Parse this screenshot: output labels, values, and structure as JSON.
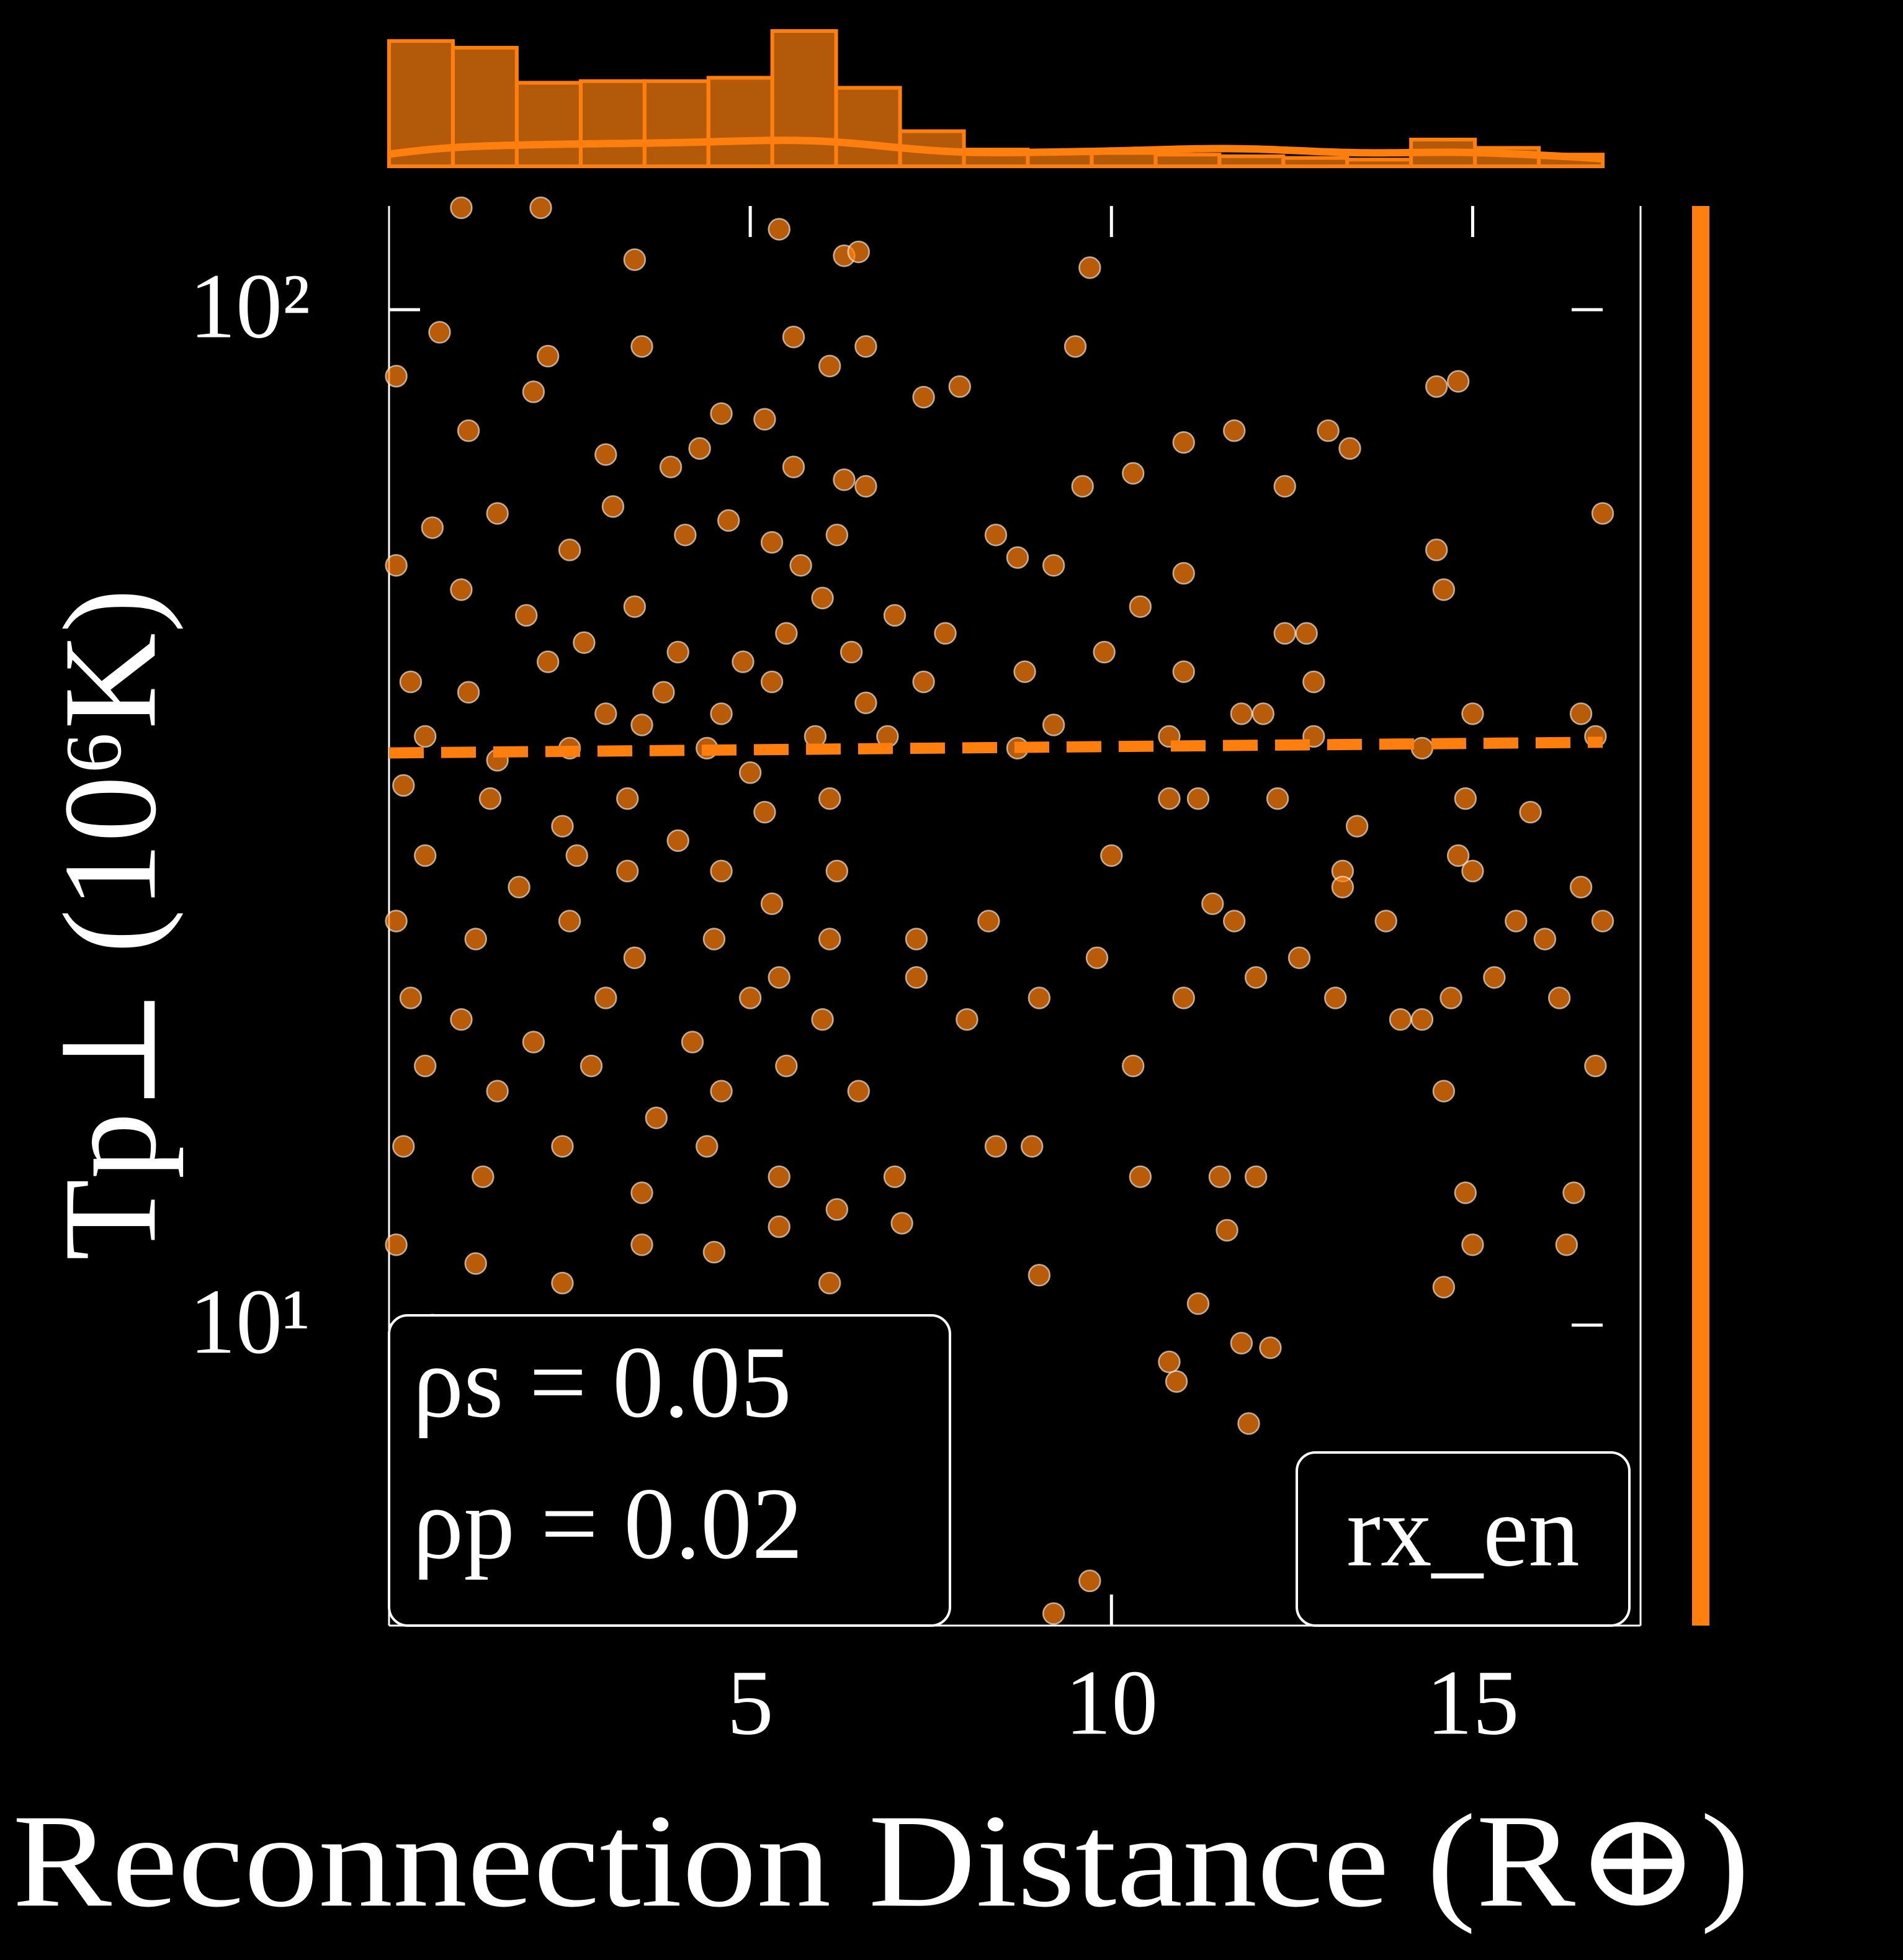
{
  "chart_data": {
    "type": "scatter",
    "x_label": "Reconnection Distance (R⊕)",
    "y_label": "Tp⊥ (10⁶K)",
    "xlim": [
      0,
      16.8
    ],
    "xticks": [
      5,
      10,
      15
    ],
    "ylim": [
      5.06,
      126.5
    ],
    "yticks": [
      {
        "value": 10,
        "label": "10¹"
      },
      {
        "value": 100,
        "label": "10²"
      }
    ],
    "log_y": true,
    "annotations": [
      "ρs = 0.05",
      "ρp = 0.02"
    ],
    "series": [
      {
        "name": "rx_en",
        "color": "#ff7f0e",
        "x": [
          1.0,
          2.1,
          3.4,
          5.4,
          6.3,
          6.5,
          9.7,
          0.7,
          0.1,
          2.2,
          3.5,
          5.6,
          6.1,
          6.6,
          7.4,
          7.9,
          9.5,
          14.8,
          14.5,
          1.1,
          2.0,
          4.6,
          5.2,
          3.0,
          3.9,
          4.3,
          5.6,
          6.3,
          6.6,
          9.6,
          10.3,
          11.0,
          11.7,
          12.4,
          13.0,
          13.3,
          0.6,
          1.5,
          2.5,
          3.1,
          4.1,
          4.7,
          5.3,
          5.7,
          6.2,
          8.4,
          9.2,
          14.5,
          16.8,
          0.1,
          1.0,
          1.9,
          2.7,
          3.4,
          4.0,
          4.9,
          5.5,
          6.0,
          6.4,
          7.0,
          7.7,
          8.7,
          10.4,
          11.0,
          12.4,
          12.7,
          14.6,
          0.3,
          1.1,
          2.2,
          3.0,
          3.8,
          4.6,
          5.3,
          6.6,
          7.4,
          8.8,
          9.9,
          11.0,
          11.8,
          12.1,
          12.8,
          16.5,
          0.5,
          1.5,
          2.5,
          3.5,
          4.4,
          5.0,
          5.9,
          6.9,
          8.7,
          9.2,
          10.8,
          12.8,
          14.3,
          15.0,
          16.7,
          0.2,
          1.4,
          2.4,
          3.3,
          4.0,
          5.2,
          6.1,
          10.8,
          11.2,
          12.3,
          13.4,
          14.9,
          15.8,
          0.5,
          1.8,
          2.6,
          3.3,
          4.6,
          5.3,
          6.2,
          10.0,
          13.2,
          14.8,
          15.0,
          16.5,
          0.1,
          1.2,
          2.5,
          3.4,
          4.5,
          5.4,
          6.1,
          7.3,
          8.3,
          9.8,
          11.4,
          11.7,
          12.6,
          13.2,
          13.8,
          15.6,
          16.0,
          16.8,
          0.3,
          1.0,
          2.0,
          3.0,
          4.2,
          5.0,
          6.0,
          7.3,
          8.0,
          9.0,
          11.0,
          12.0,
          13.1,
          14.0,
          14.7,
          15.3,
          16.2,
          0.5,
          1.5,
          2.8,
          3.7,
          4.6,
          5.5,
          6.5,
          10.3,
          14.3,
          14.6,
          16.7,
          0.2,
          1.3,
          2.4,
          3.5,
          4.4,
          5.4,
          6.2,
          7.0,
          8.4,
          8.9,
          10.4,
          11.5,
          12.0,
          14.9,
          16.4,
          0.1,
          1.2,
          2.4,
          3.5,
          4.5,
          5.4,
          6.1,
          7.1,
          9.0,
          11.6,
          14.6,
          15.0,
          16.3,
          0.6,
          1.7,
          2.6,
          4.2,
          5.9,
          11.2,
          11.8,
          12.2,
          10.8,
          10.9,
          11.9,
          7.6,
          9.7,
          9.2
        ],
        "values": [
          126,
          126,
          112,
          120,
          113,
          114,
          110,
          95,
          86,
          90,
          92,
          94,
          88,
          92,
          82,
          84,
          92,
          85,
          84,
          76,
          83,
          79,
          78,
          72,
          70,
          73,
          70,
          68,
          67,
          67,
          69,
          74,
          76,
          67,
          76,
          73,
          61,
          63,
          58,
          64,
          60,
          62,
          59,
          56,
          60,
          60,
          56,
          58,
          63,
          56,
          53,
          50,
          47,
          51,
          46,
          45,
          48,
          52,
          46,
          50,
          48,
          57,
          51,
          55,
          48,
          48,
          53,
          43,
          42,
          45,
          40,
          42,
          40,
          43,
          41,
          43,
          44,
          46,
          44,
          40,
          40,
          43,
          40,
          38,
          36,
          37,
          39,
          37,
          35,
          38,
          38,
          37,
          39,
          38,
          38,
          37,
          40,
          38,
          34,
          33,
          31,
          33,
          30,
          32,
          33,
          33,
          33,
          33,
          31,
          33,
          32,
          29,
          27,
          29,
          28,
          28,
          26,
          28,
          29,
          28,
          29,
          28,
          27,
          25,
          24,
          25,
          23,
          24,
          22,
          24,
          24,
          25,
          23,
          26,
          25,
          23,
          27,
          25,
          25,
          24,
          25,
          21,
          20,
          19,
          21,
          19,
          21,
          20,
          22,
          20,
          21,
          21,
          22,
          21,
          20,
          21,
          22,
          21,
          18,
          17,
          18,
          16,
          17,
          18,
          17,
          18,
          20,
          17,
          18,
          15,
          14,
          15,
          13.5,
          15,
          14,
          13,
          14,
          15,
          15,
          14,
          14,
          14,
          13.5,
          13.5,
          12,
          11.5,
          11,
          12,
          11.8,
          12.5,
          11,
          12.6,
          11.2,
          12.4,
          10.9,
          12,
          12,
          10,
          9.7,
          9.8,
          9.2,
          9.0,
          10.5,
          9.6,
          9.5,
          9.2,
          8.8,
          8.0,
          7.0,
          5.6,
          5.2
        ]
      }
    ],
    "fit_line": {
      "color": "#ff7f0e",
      "x": [
        0,
        16.8
      ],
      "values": [
        36.6,
        37.5
      ]
    },
    "histogram": {
      "color": "#ff7f0e",
      "bins": [
        0,
        0.884,
        1.768,
        2.653,
        3.537,
        4.421,
        5.305,
        6.189,
        7.074,
        7.958,
        8.842,
        9.726,
        10.611,
        11.495,
        12.379,
        13.263,
        14.147,
        15.032,
        15.916,
        16.8
      ],
      "counts": [
        75,
        71,
        50,
        51,
        51,
        53,
        81,
        47,
        21,
        10,
        9,
        8,
        7,
        6,
        5,
        4,
        16,
        11,
        7
      ]
    }
  }
}
